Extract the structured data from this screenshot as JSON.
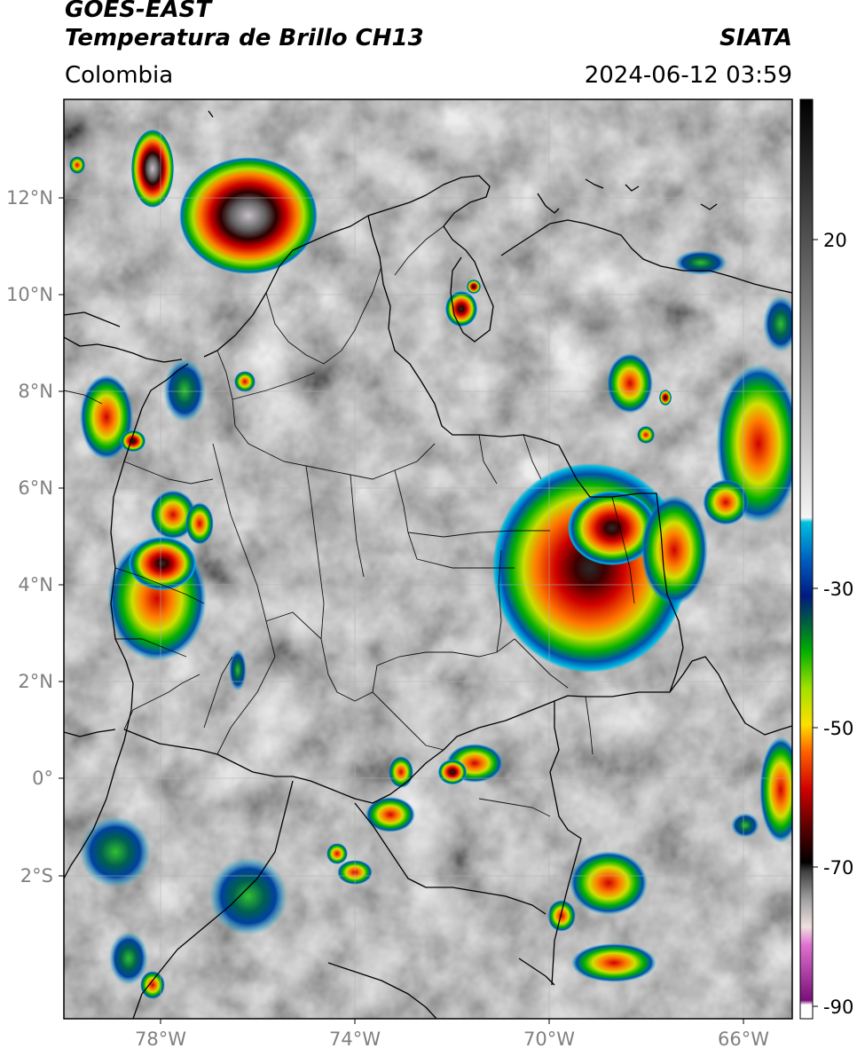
{
  "header": {
    "satellite": "GOES-EAST",
    "product": "Temperatura de Brillo CH13",
    "provider": "SIATA",
    "region": "Colombia",
    "timestamp": "2024-06-12 03:59"
  },
  "map": {
    "lat_ticks": [
      "12°N",
      "10°N",
      "8°N",
      "6°N",
      "4°N",
      "2°N",
      "0°",
      "2°S"
    ],
    "lon_ticks": [
      "78°W",
      "74°W",
      "70°W",
      "66°W"
    ]
  },
  "colorbar": {
    "ticks": [
      "20",
      "-30",
      "-50",
      "-70",
      "-90"
    ]
  },
  "colors": {
    "background_cloud": "#8c8c8c",
    "border": "#000000",
    "axis_label": "#808080"
  }
}
